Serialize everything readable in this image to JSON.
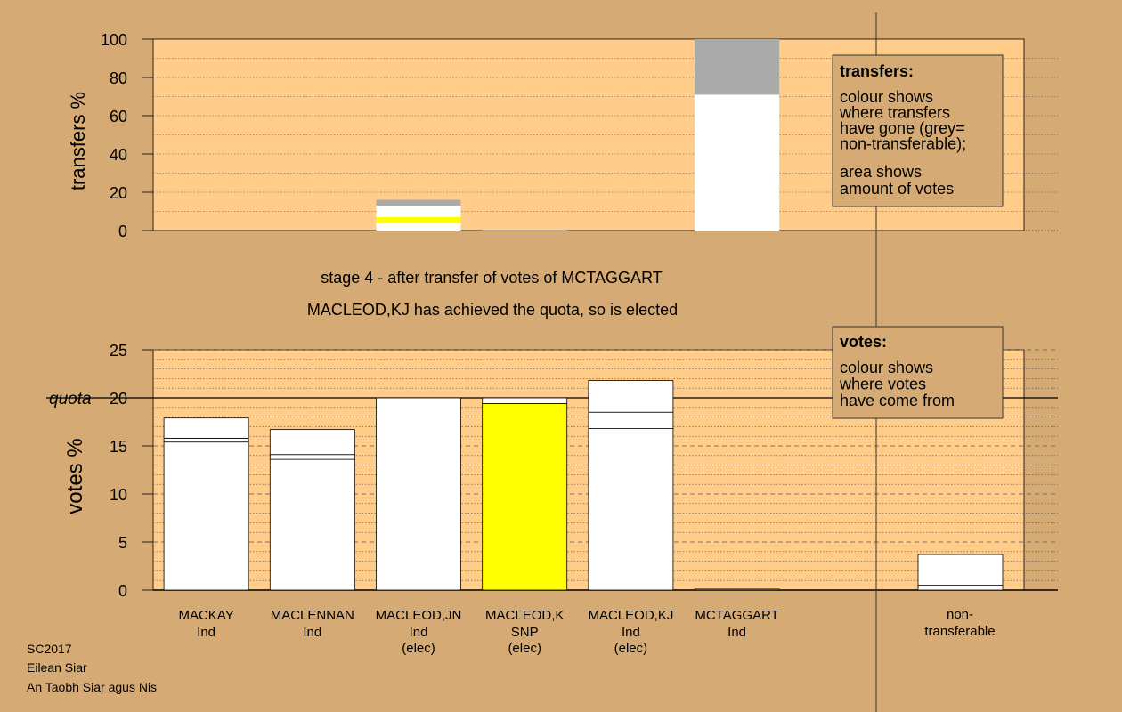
{
  "colors": {
    "background": "#D5AA74",
    "plot_area": "#FFCC8A",
    "box_fill": "#D5AA74",
    "transfer_grey": "#AAAAAA",
    "snp": "#FFFF00",
    "ind": "#FFFFFF"
  },
  "transfers_legend": {
    "title": "transfers:",
    "lines1": [
      "colour shows",
      "where transfers",
      "have gone (grey=",
      "non-transferable);"
    ],
    "lines2": [
      "area shows",
      "amount of votes"
    ]
  },
  "votes_legend": {
    "title": "votes:",
    "lines": [
      "colour shows",
      "where votes",
      "have come from"
    ]
  },
  "stage_text": "stage 4 - after transfer of votes of MCTAGGART",
  "quota_text": "MACLEOD,KJ has achieved the quota, so is elected",
  "footer": [
    "SC2017",
    "Eilean Siar",
    "An Taobh Siar agus Nis"
  ],
  "chart_data": [
    {
      "type": "bar",
      "name": "transfers",
      "ylabel": "transfers %",
      "ylim": [
        0,
        100
      ],
      "yticks": [
        0,
        20,
        40,
        60,
        80,
        100
      ],
      "bars": [
        {
          "position": 2,
          "segments": [
            {
              "from": 0,
              "to": 2,
              "color": "#FFFFFF"
            },
            {
              "from": 2,
              "to": 4,
              "color": "#FFFFFF"
            },
            {
              "from": 4,
              "to": 7,
              "color": "#FFFF00"
            },
            {
              "from": 7,
              "to": 10,
              "color": "#FFFFFF"
            },
            {
              "from": 10,
              "to": 13,
              "color": "#FFFFFF"
            },
            {
              "from": 13,
              "to": 16,
              "color": "#AAAAAA"
            }
          ]
        },
        {
          "position": 3,
          "segments": [
            {
              "from": 0,
              "to": 0.4,
              "color": "#AAAAAA"
            }
          ]
        },
        {
          "position": 5,
          "segments": [
            {
              "from": 0,
              "to": 71,
              "color": "#FFFFFF"
            },
            {
              "from": 71,
              "to": 100,
              "color": "#AAAAAA"
            }
          ]
        }
      ]
    },
    {
      "type": "bar",
      "name": "votes",
      "ylabel": "votes %",
      "ylim": [
        0,
        25
      ],
      "yticks": [
        0,
        5,
        10,
        15,
        20,
        25
      ],
      "quota": 20,
      "quota_label": "quota",
      "categories": [
        {
          "name": "MACKAY",
          "party": "Ind",
          "status": ""
        },
        {
          "name": "MACLENNAN",
          "party": "Ind",
          "status": ""
        },
        {
          "name": "MACLEOD,JN",
          "party": "Ind",
          "status": "(elec)"
        },
        {
          "name": "MACLEOD,K",
          "party": "SNP",
          "status": "(elec)"
        },
        {
          "name": "MACLEOD,KJ",
          "party": "Ind",
          "status": "(elec)"
        },
        {
          "name": "MCTAGGART",
          "party": "Ind",
          "status": ""
        }
      ],
      "bars": [
        {
          "position": 0,
          "segments": [
            {
              "from": 0,
              "to": 15.4,
              "color": "#FFFFFF"
            },
            {
              "from": 15.4,
              "to": 15.8,
              "color": "#FFFFFF"
            },
            {
              "from": 15.8,
              "to": 17.9,
              "color": "#FFFFFF"
            }
          ]
        },
        {
          "position": 1,
          "segments": [
            {
              "from": 0,
              "to": 13.6,
              "color": "#FFFFFF"
            },
            {
              "from": 13.6,
              "to": 14.1,
              "color": "#FFFFFF"
            },
            {
              "from": 14.1,
              "to": 16.7,
              "color": "#FFFFFF"
            }
          ]
        },
        {
          "position": 2,
          "segments": [
            {
              "from": 0,
              "to": 20.0,
              "color": "#FFFFFF"
            }
          ]
        },
        {
          "position": 3,
          "segments": [
            {
              "from": 0,
              "to": 19.4,
              "color": "#FFFF00"
            },
            {
              "from": 19.4,
              "to": 20.0,
              "color": "#FFFFFF"
            }
          ]
        },
        {
          "position": 4,
          "segments": [
            {
              "from": 0,
              "to": 16.8,
              "color": "#FFFFFF"
            },
            {
              "from": 16.8,
              "to": 18.5,
              "color": "#FFFFFF"
            },
            {
              "from": 18.5,
              "to": 21.8,
              "color": "#FFFFFF"
            }
          ]
        },
        {
          "position": 5,
          "segments": [
            {
              "from": 0,
              "to": 0.1,
              "color": "#FFFFFF"
            }
          ]
        }
      ],
      "nontransferable": {
        "label_lines": [
          "non-",
          "transferable"
        ],
        "segments": [
          {
            "from": 0,
            "to": 0.5,
            "color": "#FFFFFF"
          },
          {
            "from": 0.5,
            "to": 3.7,
            "color": "#FFFFFF"
          }
        ]
      }
    }
  ]
}
